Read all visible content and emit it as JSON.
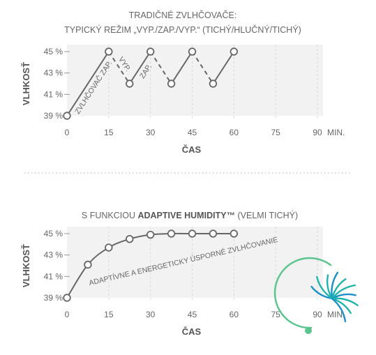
{
  "chart_data": [
    {
      "type": "line",
      "title_line1": "TRADIČNÉ ZVLHČOVAČE:",
      "title_line2": "TYPICKÝ REŽIM „VYP./ZAP./VYP.“ (TICHÝ/HLUČNÝ/TICHÝ)",
      "xlabel": "ČAS",
      "ylabel": "VLHKOSŤ",
      "x_ticks": [
        0,
        15,
        30,
        45,
        60,
        75,
        90
      ],
      "x_tick_labels": [
        "0",
        "15",
        "30",
        "45",
        "60",
        "75",
        "90"
      ],
      "x_unit": "MIN.",
      "y_ticks": [
        39,
        41,
        43,
        45
      ],
      "y_tick_labels": [
        "39 %",
        "41 %",
        "43 %",
        "45 %"
      ],
      "xlim": [
        0,
        92
      ],
      "ylim": [
        39,
        45
      ],
      "grid": "vertical-dashed",
      "points": [
        {
          "x": 0,
          "y": 39
        },
        {
          "x": 15,
          "y": 45
        },
        {
          "x": 22.5,
          "y": 42
        },
        {
          "x": 30,
          "y": 45
        },
        {
          "x": 37.5,
          "y": 42
        },
        {
          "x": 45,
          "y": 45
        },
        {
          "x": 52.5,
          "y": 42
        },
        {
          "x": 60,
          "y": 45
        }
      ],
      "segment_states": [
        "on",
        "off",
        "on",
        "off",
        "on",
        "off",
        "on"
      ],
      "annotations": {
        "on_first": "ZVLHČOVAČ ZAP.",
        "off": "VYP.",
        "on": "ZAP."
      },
      "colors": {
        "line": "#666666",
        "grid": "#d9d9d9",
        "point_fill": "#ffffff"
      }
    },
    {
      "type": "line",
      "title_prefix": "S FUNKCIOU ",
      "title_bold": "ADAPTIVE HUMIDITY™",
      "title_suffix": " (VELMI TICHÝ)",
      "xlabel": "ČAS",
      "ylabel": "VLHKOSŤ",
      "x_ticks": [
        0,
        15,
        30,
        45,
        60,
        75,
        90
      ],
      "x_tick_labels": [
        "0",
        "15",
        "30",
        "45",
        "60",
        "75",
        "90"
      ],
      "x_unit": "MIN.",
      "y_ticks": [
        39,
        41,
        43,
        45
      ],
      "y_tick_labels": [
        "39 %",
        "41 %",
        "43 %",
        "45 %"
      ],
      "xlim": [
        0,
        92
      ],
      "ylim": [
        39,
        45
      ],
      "grid": "vertical-dashed",
      "points": [
        {
          "x": 0,
          "y": 39
        },
        {
          "x": 7.5,
          "y": 42.1
        },
        {
          "x": 15,
          "y": 43.7
        },
        {
          "x": 22.5,
          "y": 44.5
        },
        {
          "x": 30,
          "y": 44.9
        },
        {
          "x": 37.5,
          "y": 45
        },
        {
          "x": 45,
          "y": 45
        },
        {
          "x": 52.5,
          "y": 45
        },
        {
          "x": 60,
          "y": 45
        }
      ],
      "annotation": "ADAPTÍVNE A ENERGETICKY ÚSPORNÉ ZVLHČOVANIE",
      "colors": {
        "line": "#666666",
        "grid": "#d9d9d9",
        "point_fill": "#ffffff"
      }
    }
  ],
  "logo": {
    "name": "dandelion-logo",
    "colors": {
      "teal": "#1fb5ad",
      "green": "#5bc58f",
      "blue": "#1c8ec8"
    }
  },
  "separator": {
    "color": "#bbbbbb"
  }
}
